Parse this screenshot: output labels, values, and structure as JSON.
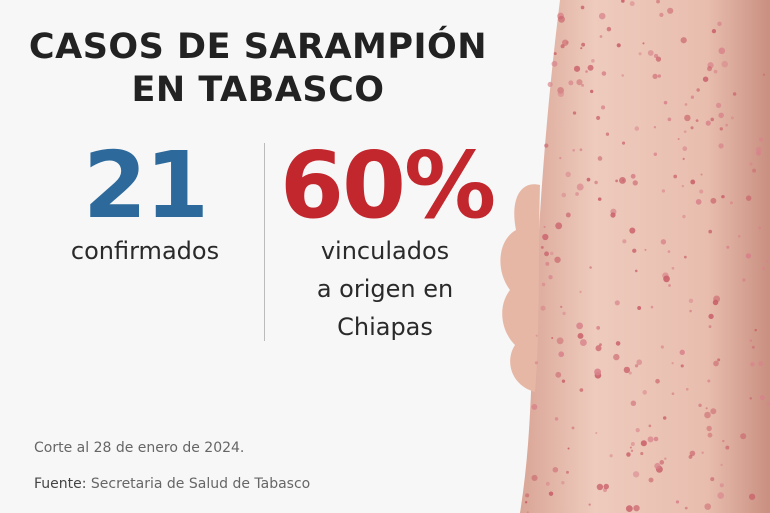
{
  "title": {
    "line1": "CASOS DE SARAMPIÓN",
    "line2": "EN TABASCO"
  },
  "stats": [
    {
      "value": "21",
      "label_lines": [
        "confirmados"
      ],
      "color": "#2d6a9b"
    },
    {
      "value": "60%",
      "label_lines": [
        "vinculados",
        "a origen en",
        "Chiapas"
      ],
      "color": "#c1272d"
    }
  ],
  "cutoff": "Corte al 28 de enero de 2024.",
  "source": {
    "label": "Fuente:",
    "text": "Secretaria de Salud de Tabasco"
  },
  "photo": {
    "subject": "arm-with-rash-image"
  }
}
